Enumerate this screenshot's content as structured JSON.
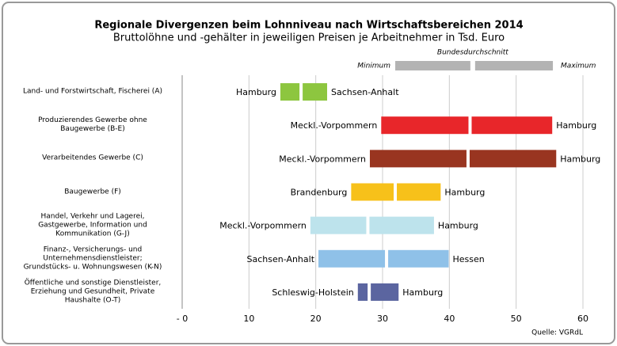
{
  "chart_data": {
    "type": "range_bar",
    "title": "Regionale Divergenzen beim Lohnniveau nach Wirtschaftsbereichen 2014",
    "subtitle": "Bruttolöhne und -gehälter in jeweiligen Preisen je Arbeitnehmer in Tsd. Euro",
    "source": "Quelle:  VGRdL",
    "legend": {
      "min": "Minimum",
      "avg": "Bundesdurchschnitt",
      "max": "Maximum",
      "color": "#b3b3b3"
    },
    "categories": [
      "Land- und Forstwirtschaft, Fischerei (A)",
      "Produzierendes Gewerbe ohne\nBaugewerbe (B-E)",
      "Verarbeitendes Gewerbe (C)",
      "Baugewerbe (F)",
      "Handel, Verkehr und Lagerei,\nGastgewerbe, Information und\nKommunikation (G-J)",
      "Finanz-, Versicherungs- und\nUnternehmensdienstleister;\nGrundstücks- u. Wohnungswesen (K-N)",
      "Öffentliche und sonstige  Dienstleister,\nErziehung und Gesundheit, Private\nHaushalte (O-T)"
    ],
    "min": [
      14.7,
      29.8,
      28.1,
      25.3,
      19.2,
      20.4,
      26.3
    ],
    "avg": [
      17.8,
      43.1,
      42.8,
      31.9,
      27.8,
      30.6,
      28.0
    ],
    "max": [
      21.7,
      55.4,
      56.0,
      38.7,
      37.7,
      39.9,
      32.4
    ],
    "min_labels": [
      "Hamburg",
      "Meckl.-Vorpommern",
      "Meckl.-Vorpommern",
      "Brandenburg",
      "Meckl.-Vorpommern",
      "Sachsen-Anhalt",
      "Schleswig-Holstein"
    ],
    "max_labels": [
      "Sachsen-Anhalt",
      "Hamburg",
      "Hamburg",
      "Hamburg",
      "Hamburg",
      "Hessen",
      "Hamburg"
    ],
    "colors": [
      "#8dc63f",
      "#e8262a",
      "#993520",
      "#f7c11a",
      "#bde3ec",
      "#8fc1e8",
      "#5b65a0"
    ],
    "xlim": [
      0,
      60
    ],
    "xticks": [
      {
        "value": 0,
        "label": "- 0"
      },
      10,
      20,
      30,
      40,
      50,
      60
    ],
    "grid": true
  }
}
